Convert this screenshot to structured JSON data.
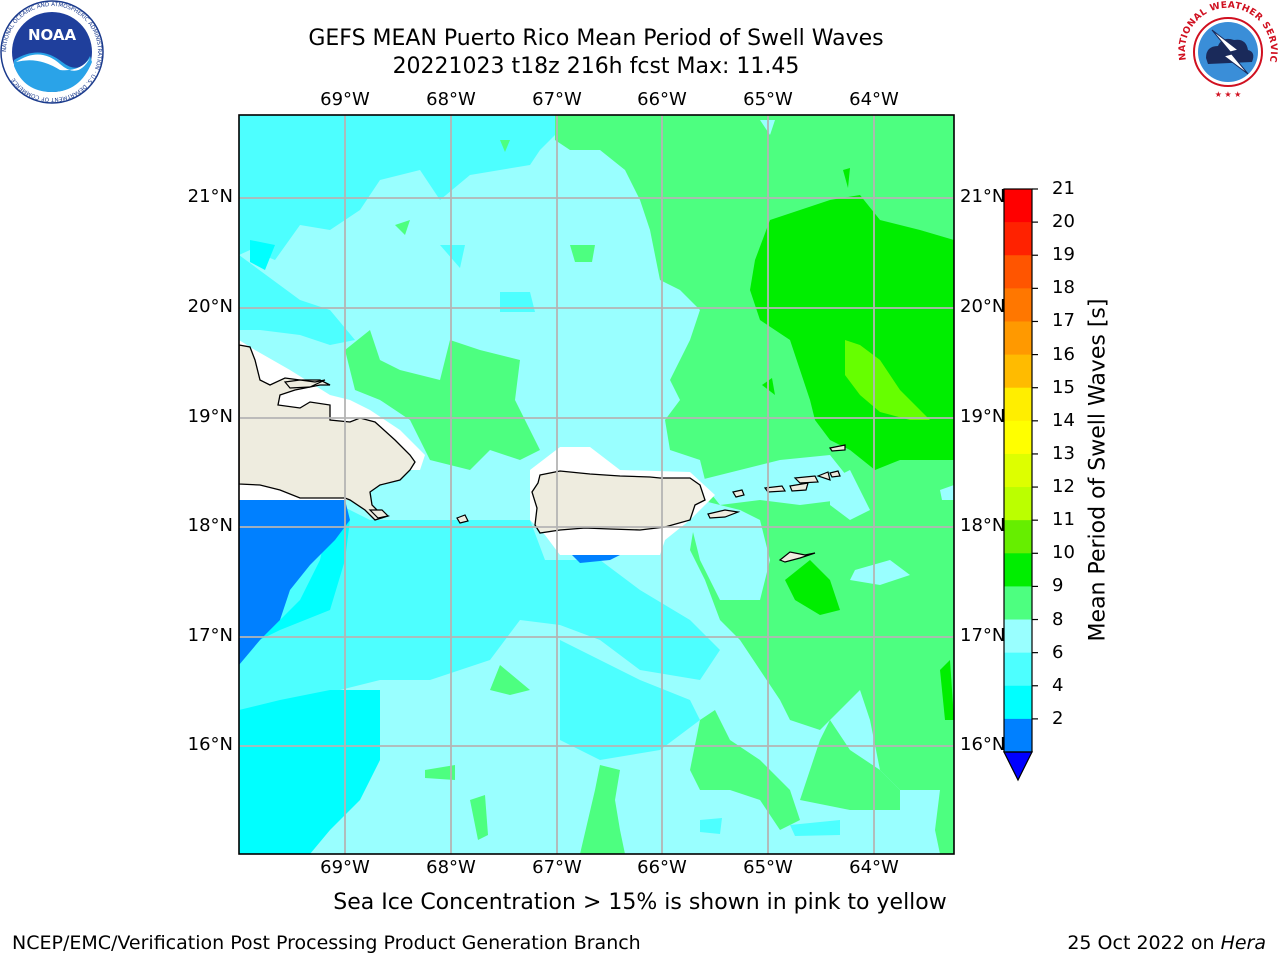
{
  "title_line1": "GEFS MEAN Puerto Rico Mean Period of Swell Waves",
  "title_line2": "20221023 t18z 216h fcst   Max: 11.45",
  "map": {
    "longitude_labels": [
      "69°W",
      "68°W",
      "67°W",
      "66°W",
      "65°W",
      "64°W"
    ],
    "latitude_labels": [
      "21°N",
      "20°N",
      "19°N",
      "18°N",
      "17°N",
      "16°N"
    ],
    "colors": {
      "ocean_light_cyan": "#99ffff",
      "cyan": "#4dffff",
      "bright_cyan": "#00ffff",
      "medium_green": "#4dff80",
      "bright_green": "#00ee00",
      "yellow_green": "#66ff00",
      "blue": "#0080ff",
      "land": "#eeecdf",
      "no_data": "#ffffff",
      "grid": "#b4b4b4"
    }
  },
  "colorbar": {
    "title": "Mean Period of Swell Waves [s]",
    "tick_labels": [
      "21",
      "20",
      "19",
      "18",
      "17",
      "16",
      "15",
      "14",
      "13",
      "12",
      "11",
      "10",
      "9",
      "8",
      "6",
      "4",
      "2"
    ],
    "extend": "min",
    "extend_color": "#0000ff",
    "bin_colors": [
      "#ff0000",
      "#ff2200",
      "#ff5500",
      "#ff7700",
      "#ff9900",
      "#ffbb00",
      "#ffee00",
      "#ffff00",
      "#ddff00",
      "#bbff00",
      "#66ee00",
      "#00ee00",
      "#4dff80",
      "#99ffff",
      "#4dffff",
      "#00ffff",
      "#0080ff"
    ]
  },
  "footer_note": "Sea Ice Concentration > 15% is shown in pink to yellow",
  "credit_left": "NCEP/EMC/Verification Post Processing Product Generation Branch",
  "credit_right_date": "25 Oct 2022 on ",
  "credit_right_host": "Hera",
  "logos": {
    "noaa_text": "NOAA",
    "noaa_ring_text": "NATIONAL OCEANIC AND ATMOSPHERIC ADMINISTRATION · U.S. DEPARTMENT OF COMMERCE",
    "nws_ring_text": "NATIONAL WEATHER SERVICE"
  }
}
